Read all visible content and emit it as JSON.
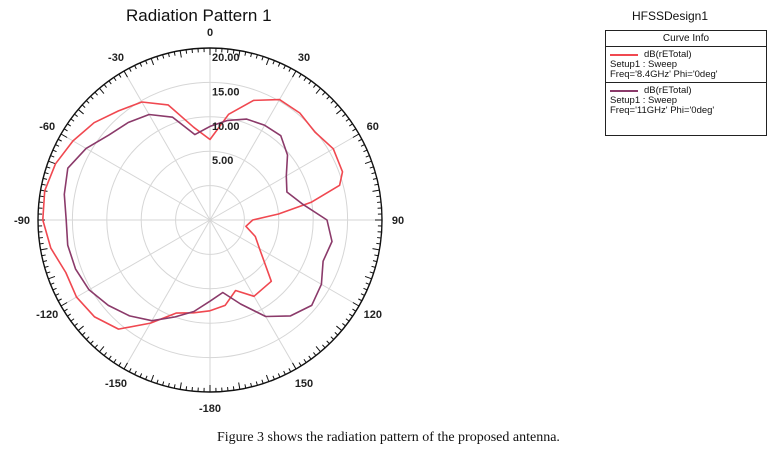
{
  "chart_data": {
    "type": "polar-line",
    "title": "Radiation Pattern 1",
    "design_name": "HFSSDesign1",
    "legend_header": "Curve Info",
    "radial_range": [
      -5,
      20
    ],
    "radial_ticks": [
      "20.00",
      "15.00",
      "10.00",
      "5.00"
    ],
    "radial_tick_values": [
      20,
      15,
      10,
      5
    ],
    "angle_labels": [
      "0",
      "30",
      "60",
      "90",
      "120",
      "150",
      "-180",
      "-150",
      "-120",
      "-90",
      "-60",
      "-30"
    ],
    "angle_label_values": [
      0,
      30,
      60,
      90,
      120,
      150,
      180,
      -150,
      -120,
      -90,
      -60,
      -30
    ],
    "grid": true,
    "series": [
      {
        "name": "dB(rETotal)",
        "setup": "Setup1 : Sweep",
        "params": "Freq='8.4GHz' Phi='0deg'",
        "color": "#f04850",
        "points": [
          [
            -180,
            8.2
          ],
          [
            -170,
            8.7
          ],
          [
            -160,
            9.4
          ],
          [
            -150,
            12.3
          ],
          [
            -140,
            15.7
          ],
          [
            -130,
            16.9
          ],
          [
            -120,
            17.4
          ],
          [
            -110,
            17.3
          ],
          [
            -100,
            18.5
          ],
          [
            -90,
            19.3
          ],
          [
            -80,
            19.4
          ],
          [
            -70,
            18.9
          ],
          [
            -60,
            18.0
          ],
          [
            -50,
            17.0
          ],
          [
            -40,
            15.7
          ],
          [
            -30,
            14.8
          ],
          [
            -20,
            12.8
          ],
          [
            -10,
            8.7
          ],
          [
            0,
            6.7
          ],
          [
            10,
            10.6
          ],
          [
            20,
            13.5
          ],
          [
            30,
            15.2
          ],
          [
            40,
            15.3
          ],
          [
            50,
            14.9
          ],
          [
            60,
            15.7
          ],
          [
            70,
            15.5
          ],
          [
            75,
            14.5
          ],
          [
            80,
            10.0
          ],
          [
            85,
            5.0
          ],
          [
            90,
            1.2
          ],
          [
            100,
            0.3
          ],
          [
            110,
            2.0
          ],
          [
            120,
            3.3
          ],
          [
            135,
            7.6
          ],
          [
            150,
            7.8
          ],
          [
            160,
            5.9
          ],
          [
            170,
            7.6
          ],
          [
            180,
            8.2
          ]
        ]
      },
      {
        "name": "dB(rETotal)",
        "setup": "Setup1 : Sweep",
        "params": "Freq='11GHz' Phi='0deg'",
        "color": "#8b3a6a",
        "points": [
          [
            -180,
            6.8
          ],
          [
            -170,
            8.5
          ],
          [
            -160,
            10.0
          ],
          [
            -150,
            11.9
          ],
          [
            -140,
            13.2
          ],
          [
            -130,
            14.3
          ],
          [
            -120,
            15.3
          ],
          [
            -110,
            15.8
          ],
          [
            -100,
            16.0
          ],
          [
            -90,
            15.9
          ],
          [
            -80,
            16.5
          ],
          [
            -70,
            17.0
          ],
          [
            -60,
            15.8
          ],
          [
            -50,
            14.2
          ],
          [
            -40,
            13.5
          ],
          [
            -30,
            12.7
          ],
          [
            -20,
            10.9
          ],
          [
            -10,
            7.6
          ],
          [
            0,
            8.6
          ],
          [
            10,
            9.7
          ],
          [
            20,
            10.6
          ],
          [
            30,
            10.9
          ],
          [
            40,
            11.0
          ],
          [
            50,
            9.7
          ],
          [
            60,
            7.8
          ],
          [
            70,
            6.9
          ],
          [
            80,
            8.6
          ],
          [
            90,
            12.0
          ],
          [
            100,
            13.0
          ],
          [
            110,
            12.5
          ],
          [
            120,
            13.7
          ],
          [
            130,
            14.3
          ],
          [
            140,
            13.2
          ],
          [
            150,
            11.2
          ],
          [
            160,
            8.0
          ],
          [
            170,
            5.7
          ],
          [
            180,
            6.8
          ]
        ]
      }
    ]
  },
  "caption": "Figure 3 shows the radiation pattern of the proposed antenna."
}
